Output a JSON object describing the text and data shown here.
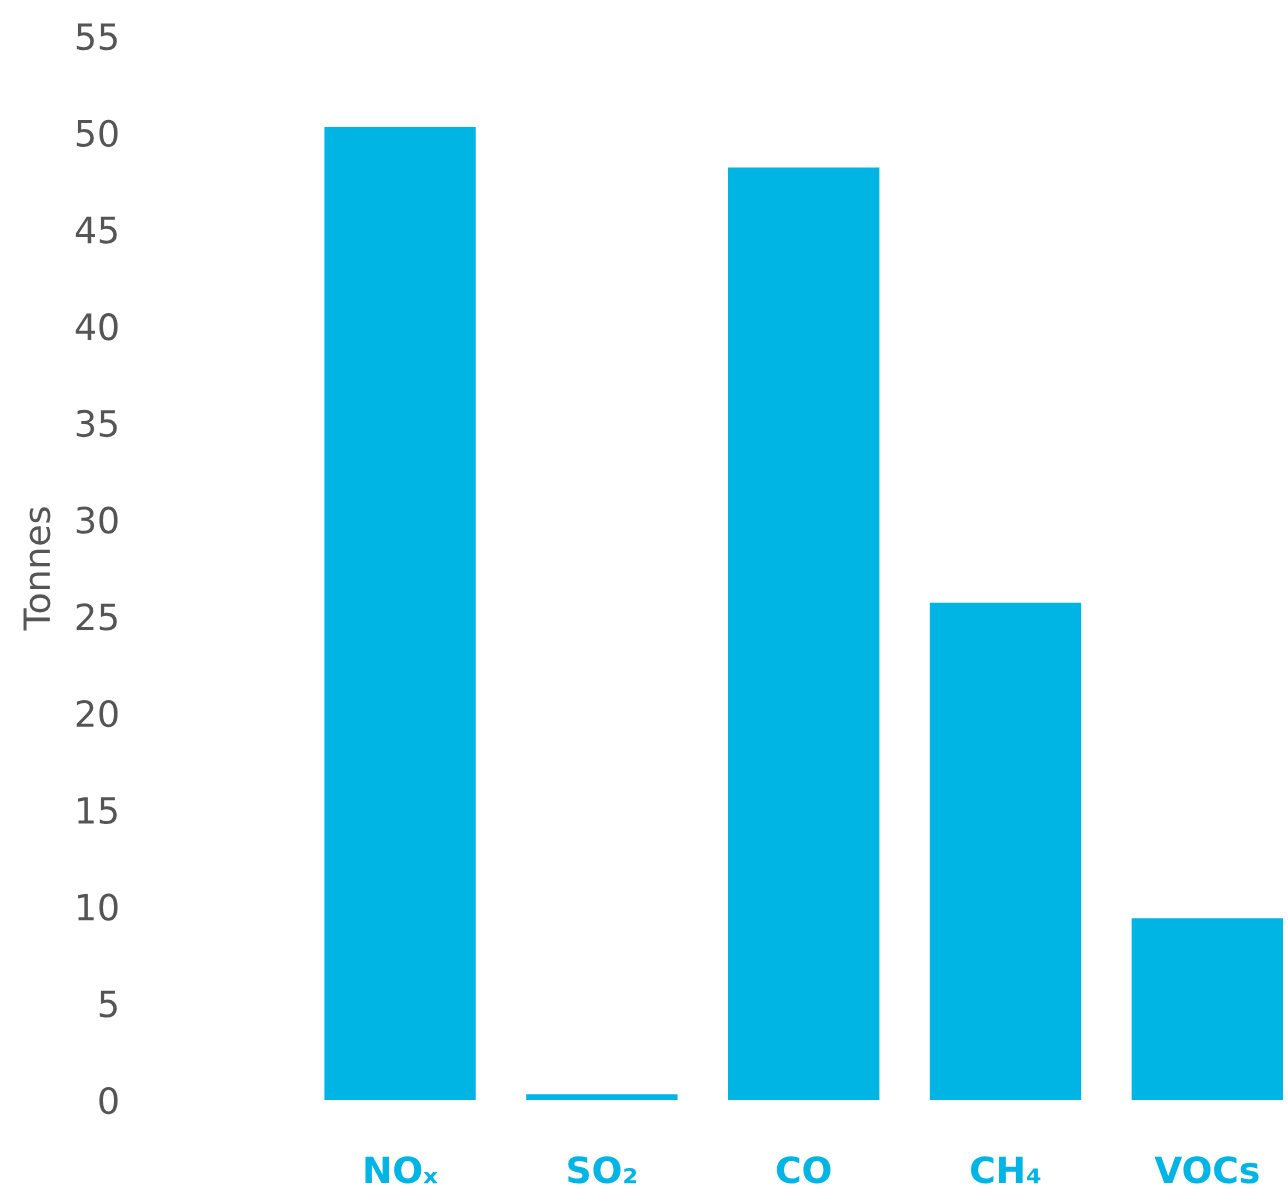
{
  "chart_data": {
    "type": "bar",
    "ylabel": "Tonnes",
    "categories": [
      "NOₓ",
      "SO₂",
      "CO",
      "CH₄",
      "VOCs"
    ],
    "values": [
      50.3,
      0.3,
      48.2,
      25.7,
      9.4
    ],
    "color": "#00b4e4",
    "ylim": [
      0,
      55
    ],
    "yticks": [
      0,
      5,
      10,
      15,
      20,
      25,
      30,
      35,
      40,
      45,
      50,
      55
    ],
    "grid": false
  }
}
